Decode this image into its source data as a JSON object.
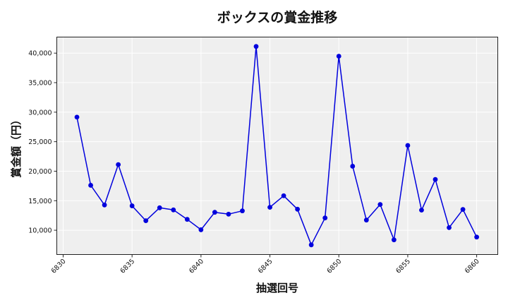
{
  "chart_data": {
    "type": "line",
    "title": "ボックスの賞金推移",
    "xlabel": "抽選回号",
    "ylabel": "賞金額（円）",
    "x": [
      6831,
      6832,
      6833,
      6834,
      6835,
      6836,
      6837,
      6838,
      6839,
      6840,
      6841,
      6842,
      6843,
      6844,
      6845,
      6846,
      6847,
      6848,
      6849,
      6850,
      6851,
      6852,
      6853,
      6854,
      6855,
      6856,
      6857,
      6858,
      6859,
      6860
    ],
    "series": [
      {
        "name": "ボックス",
        "color": "#0000dd",
        "marker": "circle",
        "values": [
          29160,
          17610,
          14280,
          21120,
          14130,
          11610,
          13800,
          13440,
          11840,
          10080,
          13040,
          12720,
          13280,
          41130,
          13880,
          15840,
          13560,
          7520,
          12080,
          39480,
          20840,
          11720,
          14360,
          8370,
          24360,
          13400,
          18600,
          10440,
          13520,
          8840
        ]
      }
    ],
    "xticks": [
      6830,
      6835,
      6840,
      6845,
      6850,
      6855,
      6860
    ],
    "xtick_labels": [
      "6830",
      "6835",
      "6840",
      "6845",
      "6850",
      "6855",
      "6860"
    ],
    "yticks": [
      10000,
      15000,
      20000,
      25000,
      30000,
      35000,
      40000
    ],
    "ytick_labels": [
      "10,000",
      "15,000",
      "20,000",
      "25,000",
      "30,000",
      "35,000",
      "40,000"
    ],
    "xlim": [
      6829.54,
      6861.53
    ],
    "ylim": [
      5884,
      42720
    ],
    "grid": true,
    "legend": false,
    "plot_background": "#efefef",
    "grid_color": "#ffffff"
  }
}
